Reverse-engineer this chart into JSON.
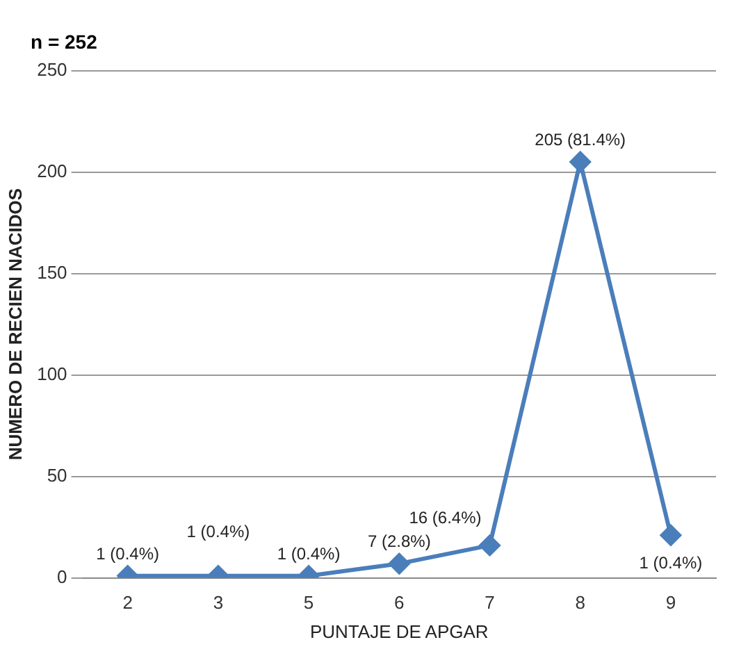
{
  "chart_data": {
    "type": "line",
    "title": "n = 252",
    "xlabel": "PUNTAJE DE APGAR",
    "ylabel": "NUMERO DE RECIEN NACIDOS",
    "categories": [
      "2",
      "3",
      "5",
      "6",
      "7",
      "8",
      "9"
    ],
    "series": [
      {
        "color": "#4a7ebb",
        "values": [
          1,
          1,
          1,
          7,
          16,
          205,
          21
        ],
        "value_labels": [
          "1 (0.4%)",
          "1 (0.4%)",
          "1 (0.4%)",
          "7 (2.8%)",
          "16 (6.4%)",
          "205 (81.4%)",
          null
        ]
      }
    ],
    "annotations": [
      {
        "text": "1 (0.4%)",
        "x": "9",
        "y": 21
      }
    ],
    "ylim": [
      0,
      250
    ],
    "yticks": [
      0,
      50,
      100,
      150,
      200,
      250
    ],
    "grid": "y",
    "legend": false,
    "marker": "diamond",
    "line_style": "solid"
  }
}
